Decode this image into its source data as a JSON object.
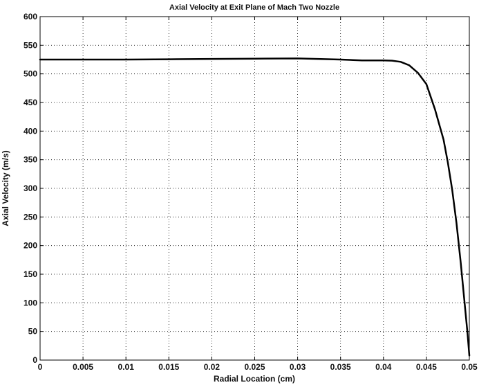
{
  "chart_data": {
    "type": "line",
    "title": "Axial Velocity at Exit Plane of Mach Two Nozzle",
    "xlabel": "Radial Location (cm)",
    "ylabel": "Axial Velocity (m/s)",
    "xlim": [
      0,
      0.05
    ],
    "ylim": [
      0,
      600
    ],
    "grid": true,
    "xticks": [
      0,
      0.005,
      0.01,
      0.015,
      0.02,
      0.025,
      0.03,
      0.035,
      0.04,
      0.045,
      0.05
    ],
    "xtick_labels": [
      "0",
      "0.005",
      "0.01",
      "0.015",
      "0.02",
      "0.025",
      "0.03",
      "0.035",
      "0.04",
      "0.045",
      "0.05"
    ],
    "yticks": [
      0,
      50,
      100,
      150,
      200,
      250,
      300,
      350,
      400,
      450,
      500,
      550,
      600
    ],
    "ytick_labels": [
      "0",
      "50",
      "100",
      "150",
      "200",
      "250",
      "300",
      "350",
      "400",
      "450",
      "500",
      "550",
      "600"
    ],
    "series": [
      {
        "color": "#000000",
        "x": [
          0,
          0.005,
          0.01,
          0.015,
          0.02,
          0.025,
          0.03,
          0.035,
          0.0375,
          0.04,
          0.041,
          0.042,
          0.043,
          0.044,
          0.045,
          0.046,
          0.047,
          0.0475,
          0.048,
          0.0485,
          0.049,
          0.0495,
          0.0498,
          0.05
        ],
        "y": [
          525,
          525,
          525,
          525.5,
          526,
          526.5,
          527,
          525,
          523.5,
          523.5,
          523,
          521,
          515,
          502,
          482,
          438,
          385,
          345,
          298,
          240,
          170,
          92,
          45,
          8
        ]
      }
    ]
  }
}
